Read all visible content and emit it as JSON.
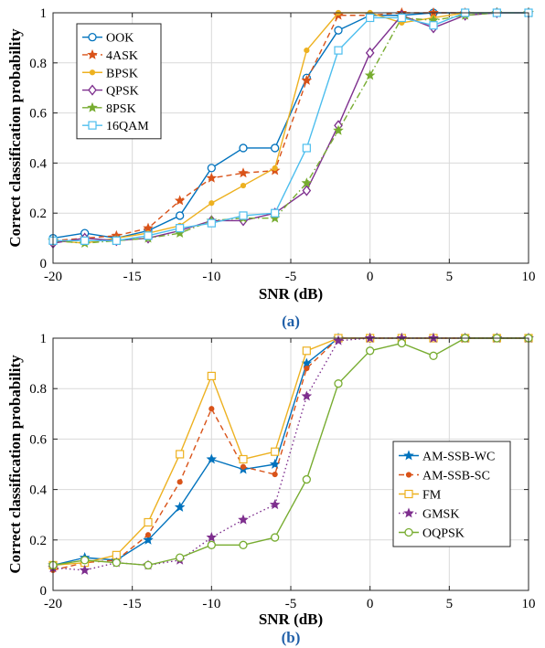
{
  "chart_data": [
    {
      "type": "line",
      "panel_label": "(a)",
      "xlabel": "SNR (dB)",
      "ylabel": "Correct classification probability",
      "xlim": [
        -20,
        10
      ],
      "ylim": [
        0,
        1
      ],
      "xticks": [
        "-20",
        "-15",
        "-10",
        "-5",
        "0",
        "5",
        "10"
      ],
      "yticks": [
        "0",
        "0.2",
        "0.4",
        "0.6",
        "0.8",
        "1"
      ],
      "grid": true,
      "legend_position": "top-left",
      "x": [
        -20,
        -18,
        -16,
        -14,
        -12,
        -10,
        -8,
        -6,
        -4,
        -2,
        0,
        2,
        4,
        6,
        8,
        10
      ],
      "series": [
        {
          "name": "OOK",
          "color": "#0072BD",
          "marker": "circle",
          "dash": "solid",
          "values": [
            0.1,
            0.12,
            0.1,
            0.13,
            0.19,
            0.38,
            0.46,
            0.46,
            0.74,
            0.93,
            0.99,
            0.99,
            1.0,
            1.0,
            1.0,
            1.0
          ]
        },
        {
          "name": "4ASK",
          "color": "#D95319",
          "marker": "star",
          "dash": "dashed",
          "values": [
            0.09,
            0.1,
            0.11,
            0.14,
            0.25,
            0.34,
            0.36,
            0.37,
            0.73,
            0.99,
            0.99,
            1.0,
            1.0,
            1.0,
            1.0,
            1.0
          ]
        },
        {
          "name": "BPSK",
          "color": "#EDB120",
          "marker": "dot",
          "dash": "solid",
          "values": [
            0.09,
            0.08,
            0.1,
            0.12,
            0.15,
            0.24,
            0.31,
            0.38,
            0.85,
            1.0,
            1.0,
            0.96,
            0.98,
            1.0,
            1.0,
            1.0
          ]
        },
        {
          "name": "QPSK",
          "color": "#7E2F8E",
          "marker": "diamond",
          "dash": "solid",
          "values": [
            0.08,
            0.1,
            0.09,
            0.1,
            0.13,
            0.17,
            0.17,
            0.2,
            0.29,
            0.55,
            0.84,
            0.99,
            0.94,
            0.99,
            1.0,
            1.0
          ]
        },
        {
          "name": "8PSK",
          "color": "#77AC30",
          "marker": "star",
          "dash": "dashdot",
          "values": [
            0.09,
            0.08,
            0.09,
            0.1,
            0.12,
            0.17,
            0.18,
            0.18,
            0.32,
            0.53,
            0.75,
            0.98,
            0.97,
            0.99,
            1.0,
            1.0
          ]
        },
        {
          "name": "16QAM",
          "color": "#4DBEEE",
          "marker": "square",
          "dash": "solid",
          "values": [
            0.09,
            0.09,
            0.09,
            0.11,
            0.14,
            0.16,
            0.19,
            0.2,
            0.46,
            0.85,
            0.98,
            0.98,
            0.95,
            1.0,
            1.0,
            1.0
          ]
        }
      ]
    },
    {
      "type": "line",
      "panel_label": "(b)",
      "xlabel": "SNR (dB)",
      "ylabel": "Correct classification probability",
      "xlim": [
        -20,
        10
      ],
      "ylim": [
        0,
        1
      ],
      "xticks": [
        "-20",
        "-15",
        "-10",
        "-5",
        "0",
        "5",
        "10"
      ],
      "yticks": [
        "0",
        "0.2",
        "0.4",
        "0.6",
        "0.8",
        "1"
      ],
      "grid": true,
      "legend_position": "bottom-right",
      "x": [
        -20,
        -18,
        -16,
        -14,
        -12,
        -10,
        -8,
        -6,
        -4,
        -2,
        0,
        2,
        4,
        6,
        8,
        10
      ],
      "series": [
        {
          "name": "AM-SSB-WC",
          "color": "#0072BD",
          "marker": "star",
          "dash": "solid",
          "values": [
            0.1,
            0.13,
            0.12,
            0.2,
            0.33,
            0.52,
            0.48,
            0.5,
            0.9,
            1.0,
            1.0,
            1.0,
            1.0,
            1.0,
            1.0,
            1.0
          ]
        },
        {
          "name": "AM-SSB-SC",
          "color": "#D95319",
          "marker": "dot",
          "dash": "dashed",
          "values": [
            0.08,
            0.11,
            0.12,
            0.22,
            0.43,
            0.72,
            0.49,
            0.46,
            0.88,
            1.0,
            1.0,
            1.0,
            1.0,
            1.0,
            1.0,
            1.0
          ]
        },
        {
          "name": "FM",
          "color": "#EDB120",
          "marker": "square",
          "dash": "solid",
          "values": [
            0.1,
            0.11,
            0.14,
            0.27,
            0.54,
            0.85,
            0.52,
            0.55,
            0.95,
            1.0,
            1.0,
            1.0,
            1.0,
            1.0,
            1.0,
            1.0
          ]
        },
        {
          "name": "GMSK",
          "color": "#7E2F8E",
          "marker": "star",
          "dash": "dotted",
          "values": [
            0.09,
            0.08,
            0.11,
            0.1,
            0.12,
            0.21,
            0.28,
            0.34,
            0.77,
            0.99,
            1.0,
            1.0,
            1.0,
            1.0,
            1.0,
            1.0
          ]
        },
        {
          "name": "OQPSK",
          "color": "#77AC30",
          "marker": "circle",
          "dash": "solid",
          "values": [
            0.1,
            0.12,
            0.11,
            0.1,
            0.13,
            0.18,
            0.18,
            0.21,
            0.44,
            0.82,
            0.95,
            0.98,
            0.93,
            1.0,
            1.0,
            1.0
          ]
        }
      ]
    }
  ]
}
